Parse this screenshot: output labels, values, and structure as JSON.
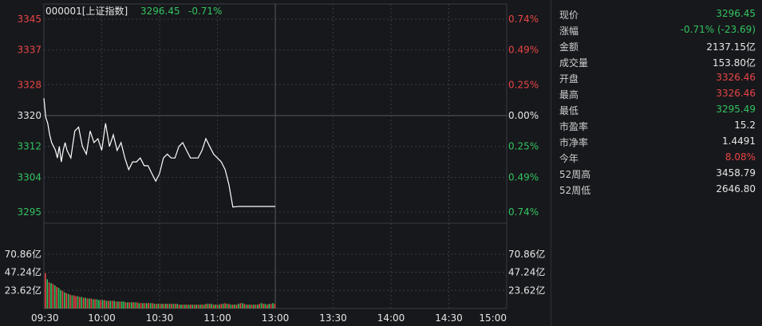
{
  "header": {
    "code_name": "000001[上证指数]",
    "price": "3296.45",
    "change_pct": "-0.71%"
  },
  "colors": {
    "up": "#e84545",
    "down": "#33c35f",
    "flat": "#e6e6e6",
    "line": "#ffffff",
    "grid": "#3a3c42",
    "background": "#17181c"
  },
  "chart_data": {
    "type": "line",
    "title": "000001[上证指数]",
    "time_ticks": [
      "09:30",
      "10:00",
      "10:30",
      "11:00",
      "13:00",
      "13:30",
      "14:00",
      "14:30",
      "15:00"
    ],
    "price_ticks": [
      "3345",
      "3337",
      "3328",
      "3320",
      "3312",
      "3304",
      "3295"
    ],
    "price_tick_values": [
      3345,
      3337,
      3328,
      3320,
      3312,
      3304,
      3295
    ],
    "pct_ticks": [
      "0.74%",
      "0.49%",
      "0.25%",
      "0.00%",
      "0.25%",
      "0.49%",
      "0.74%"
    ],
    "ylim": [
      3295,
      3345
    ],
    "prev_close": 3320,
    "volume_ticks": [
      "70.86亿",
      "47.24亿",
      "23.62亿"
    ],
    "volume_tick_values": [
      70.86,
      47.24,
      23.62
    ],
    "volume_ylim": [
      0,
      94.48
    ],
    "grid": true,
    "series": [
      {
        "name": "price",
        "x_minutes": [
          0,
          1,
          2,
          3,
          4,
          5,
          6,
          7,
          8,
          9,
          10,
          11,
          12,
          14,
          16,
          18,
          20,
          22,
          24,
          26,
          28,
          30,
          32,
          34,
          36,
          38,
          40,
          42,
          44,
          46,
          48,
          50,
          52,
          54,
          56,
          58,
          60,
          62,
          64,
          66,
          68,
          70,
          72,
          74,
          76,
          78,
          80,
          82,
          84,
          86,
          88,
          90,
          92,
          94,
          96,
          98,
          100,
          102,
          104,
          106,
          108,
          110,
          112,
          114,
          116,
          118,
          120
        ],
        "values": [
          3324.5,
          3319.5,
          3318,
          3315,
          3313,
          3312,
          3311,
          3309,
          3312,
          3308,
          3311,
          3313,
          3311,
          3309,
          3316,
          3317,
          3312,
          3310,
          3316,
          3313,
          3314,
          3311,
          3318,
          3312,
          3315,
          3311,
          3313,
          3309,
          3306,
          3308,
          3308,
          3309,
          3307,
          3307,
          3305,
          3303,
          3305,
          3309,
          3310,
          3309,
          3309,
          3312,
          3313,
          3311,
          3309,
          3309,
          3309,
          3311,
          3314,
          3312,
          3310,
          3309,
          3308,
          3306,
          3302,
          3296.3,
          3296.4,
          3296.45,
          3296.45,
          3296.45,
          3296.45,
          3296.45,
          3296.45,
          3296.45,
          3296.45,
          3296.45,
          3296.45
        ]
      },
      {
        "name": "volume",
        "values": [
          46,
          38,
          34,
          33,
          32,
          30,
          28,
          27,
          24,
          23,
          21,
          20,
          19,
          18,
          17,
          17,
          16,
          16,
          15,
          15,
          14,
          14,
          13,
          13,
          13,
          12,
          12,
          12,
          11,
          11,
          11,
          11,
          10,
          10,
          10,
          10,
          10,
          9,
          9,
          9,
          9,
          9,
          8,
          8,
          8,
          8,
          8,
          8,
          8,
          7,
          7,
          7,
          7,
          7,
          7,
          7,
          7,
          6,
          6,
          6,
          6,
          6,
          6,
          6,
          6,
          6,
          6,
          6,
          6,
          6,
          5,
          5,
          5,
          5,
          5,
          5,
          5,
          5,
          5,
          5,
          5,
          5,
          5,
          5,
          6,
          6,
          6,
          6,
          5,
          5,
          5,
          5,
          6,
          6,
          7,
          6,
          6,
          5,
          5,
          5,
          5,
          6,
          7,
          7,
          6,
          5,
          5,
          5,
          5,
          5,
          5,
          5,
          6,
          7,
          6,
          6,
          5,
          6,
          6,
          7,
          6
        ],
        "directions": [
          "u",
          "d",
          "u",
          "d",
          "u",
          "d",
          "u",
          "d",
          "d",
          "u",
          "d",
          "u",
          "d",
          "u",
          "d",
          "u",
          "u",
          "d",
          "u",
          "d",
          "u",
          "d",
          "u",
          "d",
          "u",
          "d",
          "u",
          "d",
          "d",
          "u",
          "d",
          "u",
          "d",
          "u",
          "d",
          "u",
          "d",
          "u",
          "d",
          "u",
          "d",
          "d",
          "u",
          "d",
          "u",
          "d",
          "u",
          "d",
          "u",
          "d",
          "u",
          "d",
          "u",
          "d",
          "u",
          "d",
          "u",
          "d",
          "u",
          "d",
          "u",
          "d",
          "u",
          "d",
          "u",
          "d",
          "u",
          "d",
          "u",
          "d",
          "u",
          "d",
          "u",
          "d",
          "u",
          "d",
          "u",
          "d",
          "u",
          "d",
          "u",
          "d",
          "u",
          "d",
          "u",
          "d",
          "u",
          "d",
          "u",
          "d",
          "u",
          "d",
          "u",
          "d",
          "u",
          "d",
          "u",
          "d",
          "u",
          "d",
          "u",
          "d",
          "u",
          "d",
          "u",
          "d",
          "u",
          "d",
          "u",
          "d",
          "u",
          "d",
          "u",
          "d",
          "u",
          "d",
          "u",
          "d",
          "u",
          "d",
          "u"
        ]
      }
    ]
  },
  "quote": {
    "rows": [
      {
        "label": "现价",
        "value": "3296.45",
        "tone": "down"
      },
      {
        "label": "涨幅",
        "value": "-0.71% (-23.69)",
        "tone": "down"
      },
      {
        "label": "金额",
        "value": "2137.15亿",
        "tone": "flat"
      },
      {
        "label": "成交量",
        "value": "153.80亿",
        "tone": "flat"
      },
      {
        "label": "开盘",
        "value": "3326.46",
        "tone": "up"
      },
      {
        "label": "最高",
        "value": "3326.46",
        "tone": "up"
      },
      {
        "label": "最低",
        "value": "3295.49",
        "tone": "down"
      },
      {
        "label": "市盈率",
        "value": "15.2",
        "tone": "flat"
      },
      {
        "label": "市净率",
        "value": "1.4491",
        "tone": "flat"
      },
      {
        "label": "今年",
        "value": "8.08%",
        "tone": "up"
      },
      {
        "label": "52周高",
        "value": "3458.79",
        "tone": "flat"
      },
      {
        "label": "52周低",
        "value": "2646.80",
        "tone": "flat"
      }
    ]
  }
}
